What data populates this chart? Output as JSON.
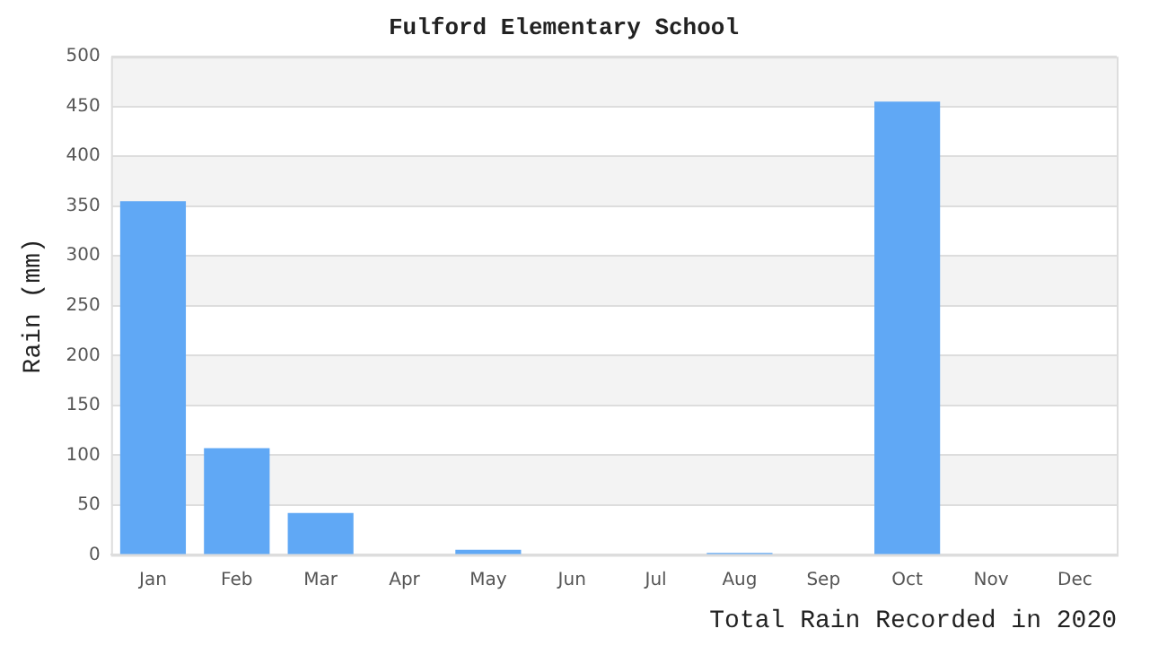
{
  "chart_data": {
    "type": "bar",
    "title": "Fulford Elementary School",
    "xlabel": "Total Rain Recorded in 2020",
    "ylabel": "Rain (mm)",
    "categories": [
      "Jan",
      "Feb",
      "Mar",
      "Apr",
      "May",
      "Jun",
      "Jul",
      "Aug",
      "Sep",
      "Oct",
      "Nov",
      "Dec"
    ],
    "values": [
      355,
      107,
      42,
      0,
      5,
      0,
      0,
      2,
      0,
      455,
      0,
      0
    ],
    "color": "#60a8f5",
    "ylim": [
      0,
      500
    ],
    "yticks": [
      0,
      50,
      100,
      150,
      200,
      250,
      300,
      350,
      400,
      450,
      500
    ],
    "grid": "y",
    "legend": false
  }
}
